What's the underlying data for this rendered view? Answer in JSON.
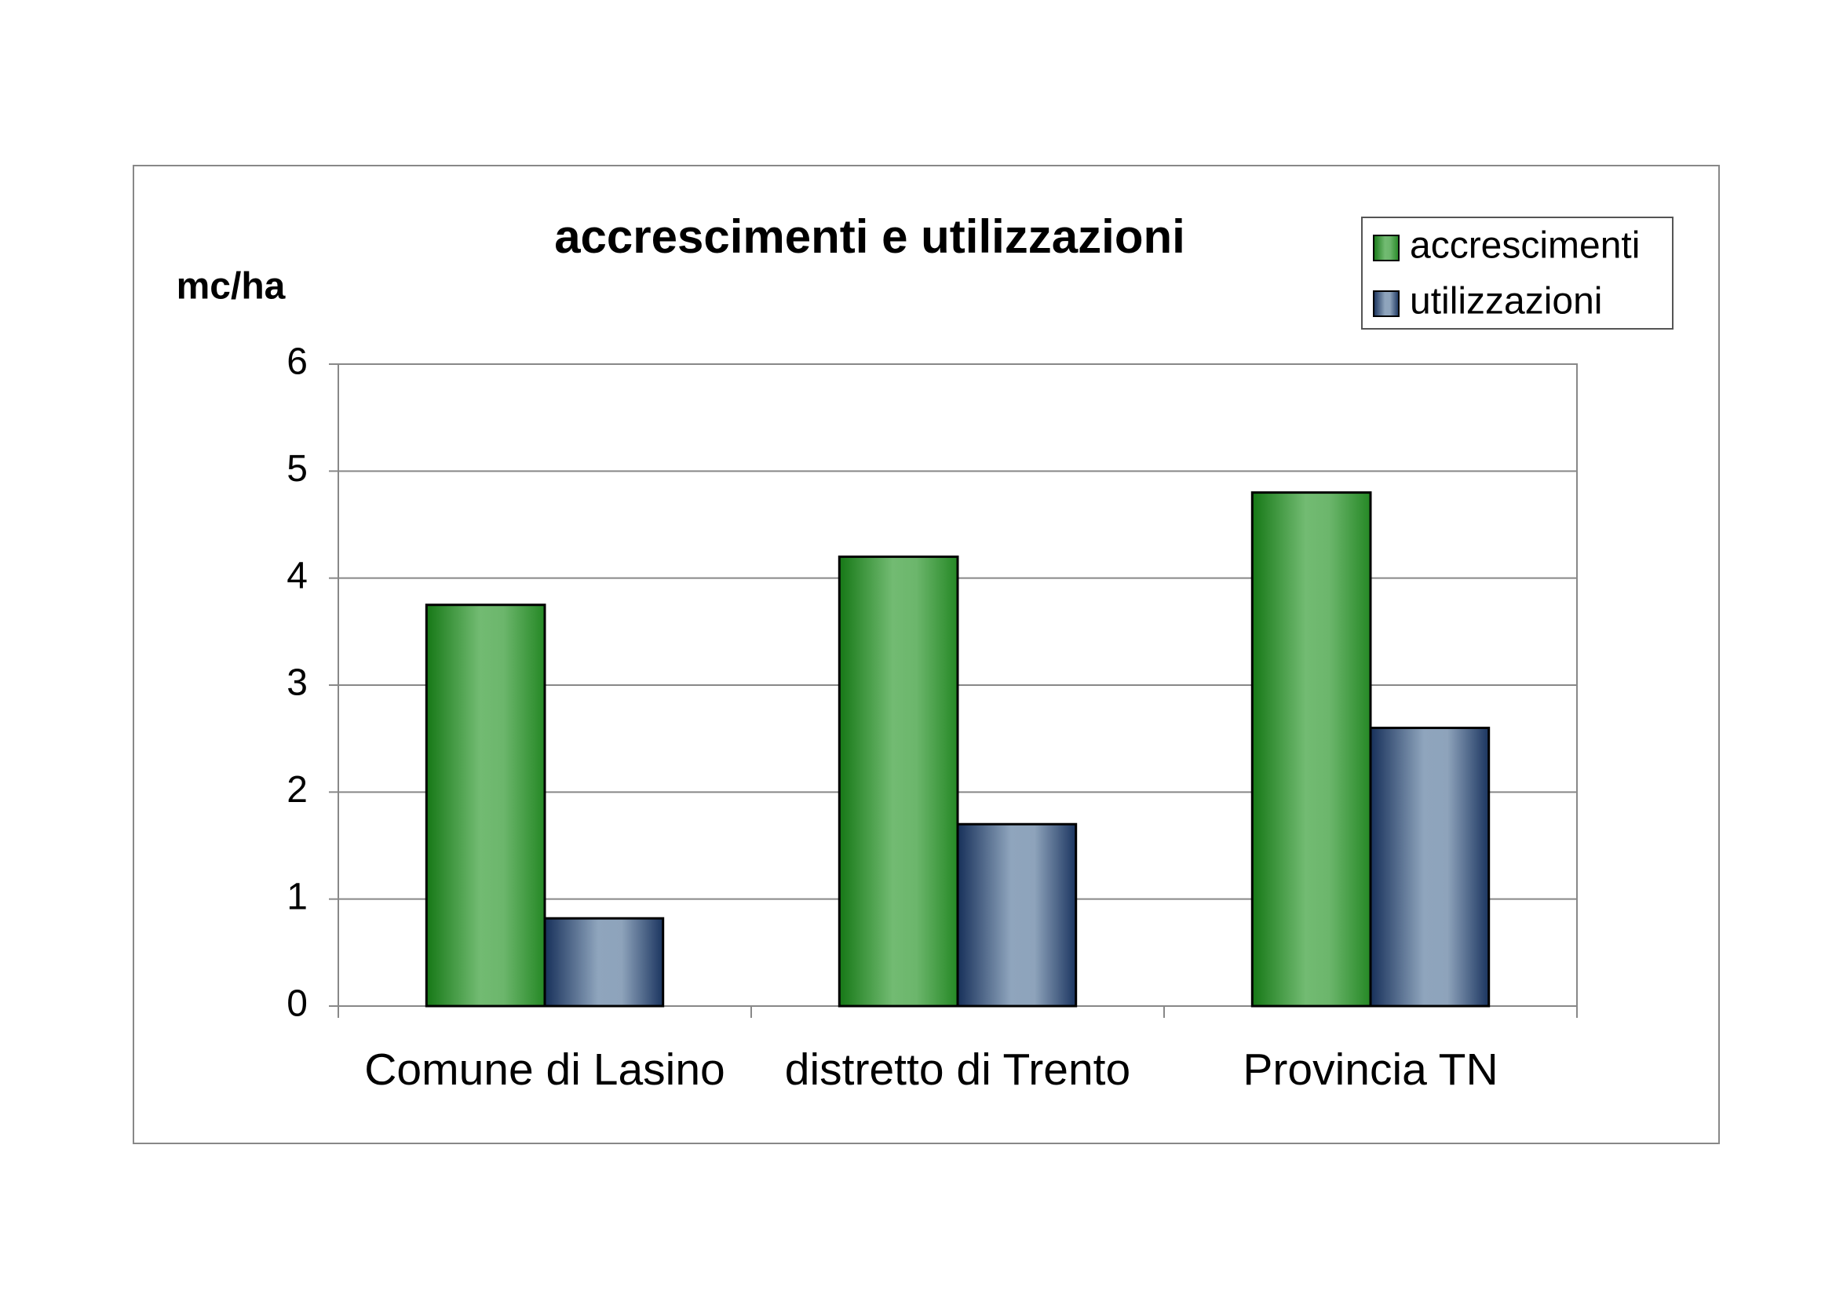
{
  "chart_data": {
    "type": "bar",
    "title": "accrescimenti e utilizzazioni",
    "y_label": "mc/ha",
    "categories": [
      "Comune di Lasino",
      "distretto di Trento",
      "Provincia TN"
    ],
    "series": [
      {
        "name": "accrescimenti",
        "color": "#5fae5f",
        "values": [
          3.75,
          4.2,
          4.8
        ]
      },
      {
        "name": "utilizzazioni",
        "color": "#8096b4",
        "values": [
          0.82,
          1.7,
          2.6
        ]
      }
    ],
    "ylim": [
      0,
      6
    ],
    "yticks": [
      0,
      1,
      2,
      3,
      4,
      5,
      6
    ],
    "grid": true,
    "legend": "top-right"
  }
}
